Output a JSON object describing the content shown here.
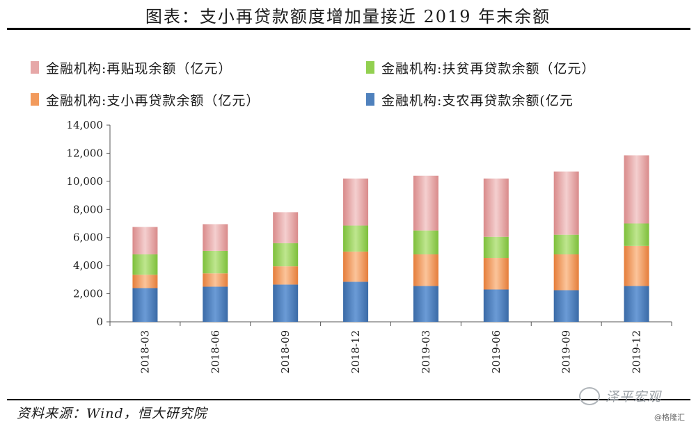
{
  "title": "图表：支小再贷款额度增加量接近 2019 年末余额",
  "source": "资料来源：Wind，恒大研究院",
  "watermark": "泽平宏观",
  "corner_mark": "@格隆汇",
  "colors": {
    "pink": "#e6a7a7",
    "green": "#92d050",
    "orange": "#f29a5c",
    "blue": "#4f81bd"
  },
  "chart_data": {
    "type": "bar",
    "stacked": true,
    "title": "",
    "xlabel": "",
    "ylabel": "",
    "categories": [
      "2018-03",
      "2018-06",
      "2018-09",
      "2018-12",
      "2019-03",
      "2019-06",
      "2019-09",
      "2019-12"
    ],
    "ylim": [
      0,
      14000
    ],
    "yticks": [
      0,
      2000,
      4000,
      6000,
      8000,
      10000,
      12000,
      14000
    ],
    "ytick_labels": [
      "0",
      "2,000",
      "4,000",
      "6,000",
      "8,000",
      "10,000",
      "12,000",
      "14,000"
    ],
    "grid": false,
    "legend_position": "top",
    "legend_order": [
      3,
      2,
      1,
      0
    ],
    "series": [
      {
        "name": "金融机构:支农再贷款余额(亿元",
        "color": "#4f81bd",
        "values": [
          2400,
          2500,
          2650,
          2850,
          2550,
          2300,
          2250,
          2550
        ]
      },
      {
        "name": "金融机构:支小再贷款余额（亿元）",
        "color": "#f29a5c",
        "values": [
          950,
          950,
          1300,
          2150,
          2250,
          2250,
          2550,
          2850
        ]
      },
      {
        "name": "金融机构:扶贫再贷款余额（亿元）",
        "color": "#92d050",
        "values": [
          1450,
          1600,
          1650,
          1850,
          1700,
          1500,
          1400,
          1600
        ]
      },
      {
        "name": "金融机构:再贴现余额（亿元）",
        "color": "#e6a7a7",
        "values": [
          1950,
          1900,
          2200,
          3350,
          3900,
          4150,
          4500,
          4850
        ]
      }
    ]
  }
}
